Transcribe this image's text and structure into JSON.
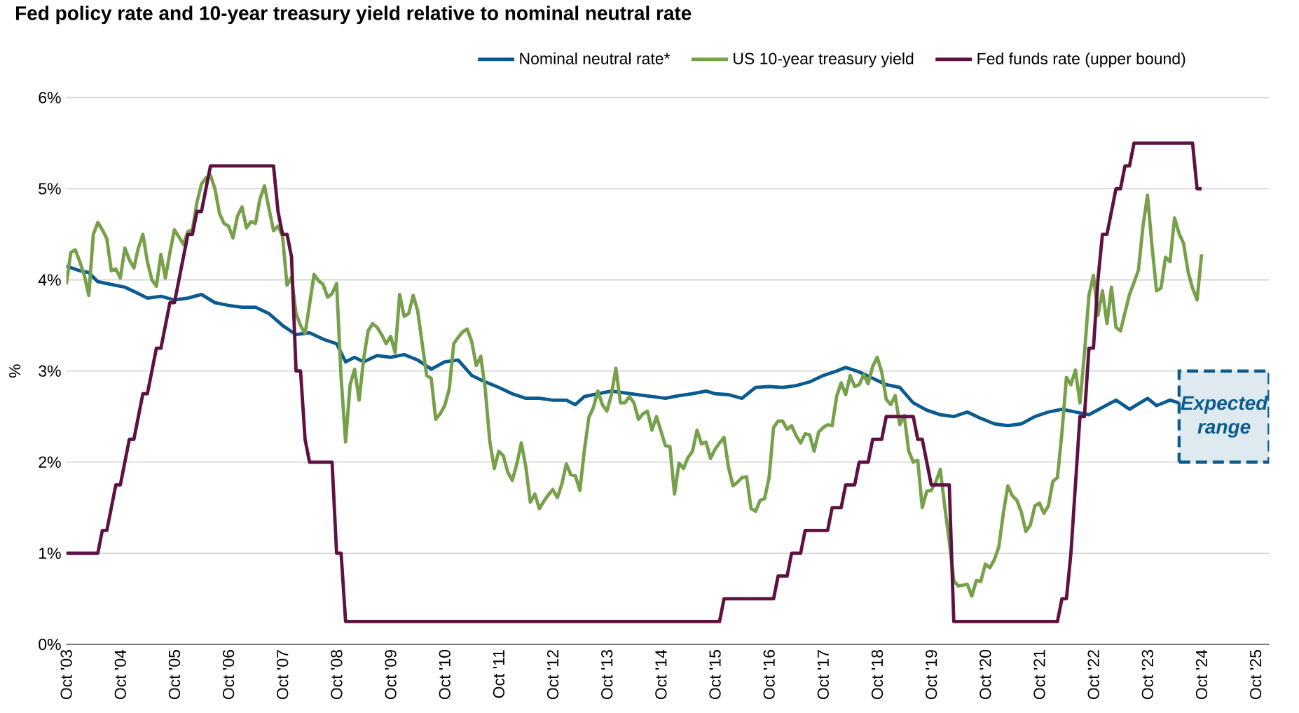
{
  "chart_data": {
    "type": "line",
    "title": "Fed policy rate and 10-year treasury yield relative to nominal neutral rate",
    "ylabel": "%",
    "x": [
      "2003-10",
      "2003-11",
      "2003-12",
      "2004-01",
      "2004-02",
      "2004-03",
      "2004-04",
      "2004-05",
      "2004-06",
      "2004-07",
      "2004-08",
      "2004-09",
      "2004-10",
      "2004-11",
      "2004-12",
      "2005-01",
      "2005-02",
      "2005-03",
      "2005-04",
      "2005-05",
      "2005-06",
      "2005-07",
      "2005-08",
      "2005-09",
      "2005-10",
      "2005-11",
      "2005-12",
      "2006-01",
      "2006-02",
      "2006-03",
      "2006-04",
      "2006-05",
      "2006-06",
      "2006-07",
      "2006-08",
      "2006-09",
      "2006-10",
      "2006-11",
      "2006-12",
      "2007-01",
      "2007-02",
      "2007-03",
      "2007-04",
      "2007-05",
      "2007-06",
      "2007-07",
      "2007-08",
      "2007-09",
      "2007-10",
      "2007-11",
      "2007-12",
      "2008-01",
      "2008-02",
      "2008-03",
      "2008-04",
      "2008-05",
      "2008-06",
      "2008-07",
      "2008-08",
      "2008-09",
      "2008-10",
      "2008-11",
      "2008-12",
      "2009-01",
      "2009-02",
      "2009-03",
      "2009-04",
      "2009-05",
      "2009-06",
      "2009-07",
      "2009-08",
      "2009-09",
      "2009-10",
      "2009-11",
      "2009-12",
      "2010-01",
      "2010-02",
      "2010-03",
      "2010-04",
      "2010-05",
      "2010-06",
      "2010-07",
      "2010-08",
      "2010-09",
      "2010-10",
      "2010-11",
      "2010-12",
      "2011-01",
      "2011-02",
      "2011-03",
      "2011-04",
      "2011-05",
      "2011-06",
      "2011-07",
      "2011-08",
      "2011-09",
      "2011-10",
      "2011-11",
      "2011-12",
      "2012-01",
      "2012-02",
      "2012-03",
      "2012-04",
      "2012-05",
      "2012-06",
      "2012-07",
      "2012-08",
      "2012-09",
      "2012-10",
      "2012-11",
      "2012-12",
      "2013-01",
      "2013-02",
      "2013-03",
      "2013-04",
      "2013-05",
      "2013-06",
      "2013-07",
      "2013-08",
      "2013-09",
      "2013-10",
      "2013-11",
      "2013-12",
      "2014-01",
      "2014-02",
      "2014-03",
      "2014-04",
      "2014-05",
      "2014-06",
      "2014-07",
      "2014-08",
      "2014-09",
      "2014-10",
      "2014-11",
      "2014-12",
      "2015-01",
      "2015-02",
      "2015-03",
      "2015-04",
      "2015-05",
      "2015-06",
      "2015-07",
      "2015-08",
      "2015-09",
      "2015-10",
      "2015-11",
      "2015-12",
      "2016-01",
      "2016-02",
      "2016-03",
      "2016-04",
      "2016-05",
      "2016-06",
      "2016-07",
      "2016-08",
      "2016-09",
      "2016-10",
      "2016-11",
      "2016-12",
      "2017-01",
      "2017-02",
      "2017-03",
      "2017-04",
      "2017-05",
      "2017-06",
      "2017-07",
      "2017-08",
      "2017-09",
      "2017-10",
      "2017-11",
      "2017-12",
      "2018-01",
      "2018-02",
      "2018-03",
      "2018-04",
      "2018-05",
      "2018-06",
      "2018-07",
      "2018-08",
      "2018-09",
      "2018-10",
      "2018-11",
      "2018-12",
      "2019-01",
      "2019-02",
      "2019-03",
      "2019-04",
      "2019-05",
      "2019-06",
      "2019-07",
      "2019-08",
      "2019-09",
      "2019-10",
      "2019-11",
      "2019-12",
      "2020-01",
      "2020-02",
      "2020-03",
      "2020-04",
      "2020-05",
      "2020-06",
      "2020-07",
      "2020-08",
      "2020-09",
      "2020-10",
      "2020-11",
      "2020-12",
      "2021-01",
      "2021-02",
      "2021-03",
      "2021-04",
      "2021-05",
      "2021-06",
      "2021-07",
      "2021-08",
      "2021-09",
      "2021-10",
      "2021-11",
      "2021-12",
      "2022-01",
      "2022-02",
      "2022-03",
      "2022-04",
      "2022-05",
      "2022-06",
      "2022-07",
      "2022-08",
      "2022-09",
      "2022-10",
      "2022-11",
      "2022-12",
      "2023-01",
      "2023-02",
      "2023-03",
      "2023-04",
      "2023-05",
      "2023-06",
      "2023-07",
      "2023-08",
      "2023-09",
      "2023-10",
      "2023-11",
      "2023-12",
      "2024-01",
      "2024-02",
      "2024-03",
      "2024-04",
      "2024-05",
      "2024-06",
      "2024-07",
      "2024-08",
      "2024-09",
      "2024-10"
    ],
    "series": [
      {
        "name": "Nominal neutral rate*",
        "color": "#0b5b8f",
        "x": [
          "2003-10",
          "2004-01",
          "2004-03",
          "2004-05",
          "2004-08",
          "2004-11",
          "2005-02",
          "2005-04",
          "2005-07",
          "2005-10",
          "2006-01",
          "2006-04",
          "2006-07",
          "2006-10",
          "2007-01",
          "2007-04",
          "2007-07",
          "2007-10",
          "2008-01",
          "2008-04",
          "2008-07",
          "2008-10",
          "2008-12",
          "2009-02",
          "2009-04",
          "2009-07",
          "2009-10",
          "2010-01",
          "2010-04",
          "2010-07",
          "2010-10",
          "2011-01",
          "2011-04",
          "2011-07",
          "2011-10",
          "2012-01",
          "2012-04",
          "2012-07",
          "2012-10",
          "2013-01",
          "2013-03",
          "2013-05",
          "2013-08",
          "2013-11",
          "2014-02",
          "2014-05",
          "2014-08",
          "2014-11",
          "2015-02",
          "2015-05",
          "2015-08",
          "2015-10",
          "2016-01",
          "2016-04",
          "2016-07",
          "2016-10",
          "2017-01",
          "2017-04",
          "2017-07",
          "2017-10",
          "2018-01",
          "2018-03",
          "2018-06",
          "2018-09",
          "2018-12",
          "2019-03",
          "2019-06",
          "2019-09",
          "2019-12",
          "2020-03",
          "2020-06",
          "2020-09",
          "2020-12",
          "2021-03",
          "2021-06",
          "2021-09",
          "2021-12",
          "2022-03",
          "2022-06",
          "2022-09",
          "2022-12",
          "2023-03",
          "2023-06",
          "2023-10",
          "2023-12",
          "2024-03",
          "2024-05"
        ],
        "values": [
          4.15,
          4.1,
          4.08,
          3.98,
          3.95,
          3.92,
          3.85,
          3.8,
          3.82,
          3.78,
          3.8,
          3.84,
          3.75,
          3.72,
          3.7,
          3.7,
          3.63,
          3.5,
          3.4,
          3.42,
          3.35,
          3.3,
          3.1,
          3.15,
          3.1,
          3.17,
          3.15,
          3.18,
          3.12,
          3.02,
          3.1,
          3.12,
          2.95,
          2.88,
          2.82,
          2.75,
          2.7,
          2.7,
          2.68,
          2.68,
          2.63,
          2.72,
          2.75,
          2.78,
          2.76,
          2.74,
          2.72,
          2.7,
          2.73,
          2.75,
          2.78,
          2.75,
          2.74,
          2.7,
          2.82,
          2.83,
          2.82,
          2.84,
          2.88,
          2.95,
          3.0,
          3.04,
          2.99,
          2.92,
          2.85,
          2.82,
          2.65,
          2.57,
          2.52,
          2.5,
          2.55,
          2.48,
          2.42,
          2.4,
          2.42,
          2.5,
          2.55,
          2.58,
          2.55,
          2.52,
          2.6,
          2.68,
          2.58,
          2.7,
          2.62,
          2.68,
          2.65
        ]
      },
      {
        "name": "US 10-year treasury yield",
        "color": "#77a04a",
        "values": [
          3.95,
          4.3,
          4.33,
          4.2,
          4.05,
          3.83,
          4.5,
          4.63,
          4.55,
          4.45,
          4.1,
          4.12,
          4.02,
          4.35,
          4.22,
          4.13,
          4.35,
          4.5,
          4.2,
          4.0,
          3.93,
          4.28,
          4.02,
          4.3,
          4.55,
          4.47,
          4.39,
          4.53,
          4.55,
          4.85,
          5.05,
          5.12,
          5.15,
          5.0,
          4.73,
          4.62,
          4.59,
          4.46,
          4.7,
          4.8,
          4.57,
          4.64,
          4.62,
          4.89,
          5.03,
          4.78,
          4.54,
          4.59,
          4.48,
          3.94,
          4.03,
          3.63,
          3.5,
          3.41,
          3.73,
          4.06,
          3.99,
          3.95,
          3.81,
          3.85,
          3.96,
          2.93,
          2.22,
          2.85,
          3.02,
          2.68,
          3.13,
          3.44,
          3.52,
          3.48,
          3.4,
          3.3,
          3.38,
          3.2,
          3.84,
          3.6,
          3.63,
          3.83,
          3.66,
          3.3,
          2.95,
          2.92,
          2.47,
          2.53,
          2.62,
          2.8,
          3.3,
          3.37,
          3.43,
          3.46,
          3.32,
          3.06,
          3.16,
          2.8,
          2.23,
          1.93,
          2.12,
          2.07,
          1.89,
          1.8,
          1.98,
          2.21,
          1.95,
          1.56,
          1.65,
          1.49,
          1.57,
          1.64,
          1.7,
          1.61,
          1.76,
          1.98,
          1.86,
          1.85,
          1.69,
          2.13,
          2.49,
          2.6,
          2.78,
          2.63,
          2.56,
          2.74,
          3.03,
          2.65,
          2.65,
          2.72,
          2.65,
          2.47,
          2.53,
          2.56,
          2.35,
          2.5,
          2.34,
          2.18,
          2.17,
          1.65,
          1.99,
          1.93,
          2.05,
          2.12,
          2.35,
          2.2,
          2.22,
          2.04,
          2.14,
          2.21,
          2.27,
          1.94,
          1.74,
          1.78,
          1.83,
          1.84,
          1.49,
          1.46,
          1.58,
          1.6,
          1.83,
          2.38,
          2.45,
          2.45,
          2.36,
          2.4,
          2.29,
          2.21,
          2.31,
          2.3,
          2.12,
          2.33,
          2.38,
          2.41,
          2.4,
          2.72,
          2.87,
          2.74,
          2.95,
          2.83,
          2.85,
          2.96,
          2.86,
          3.05,
          3.15,
          2.99,
          2.69,
          2.63,
          2.73,
          2.41,
          2.51,
          2.12,
          2.0,
          2.02,
          1.5,
          1.68,
          1.69,
          1.78,
          1.92,
          1.51,
          1.13,
          0.7,
          0.64,
          0.65,
          0.66,
          0.53,
          0.7,
          0.69,
          0.88,
          0.84,
          0.93,
          1.07,
          1.44,
          1.74,
          1.63,
          1.58,
          1.45,
          1.24,
          1.31,
          1.52,
          1.55,
          1.44,
          1.52,
          1.79,
          1.83,
          2.32,
          2.93,
          2.85,
          3.01,
          2.65,
          3.19,
          3.83,
          4.05,
          3.61,
          3.88,
          3.52,
          3.92,
          3.48,
          3.44,
          3.64,
          3.84,
          3.97,
          4.11,
          4.59,
          4.93,
          4.37,
          3.88,
          3.91,
          4.25,
          4.2,
          4.68,
          4.51,
          4.4,
          4.09,
          3.91,
          3.78,
          4.28
        ]
      },
      {
        "name": "Fed funds rate (upper bound)",
        "color": "#5e1242",
        "x": [
          "2003-10",
          "2004-05",
          "2004-06",
          "2004-07",
          "2004-08",
          "2004-09",
          "2004-10",
          "2004-11",
          "2004-12",
          "2005-01",
          "2005-02",
          "2005-03",
          "2005-04",
          "2005-05",
          "2005-06",
          "2005-07",
          "2005-08",
          "2005-09",
          "2005-10",
          "2005-11",
          "2005-12",
          "2006-01",
          "2006-02",
          "2006-03",
          "2006-04",
          "2006-05",
          "2006-06",
          "2007-08",
          "2007-09",
          "2007-10",
          "2007-11",
          "2007-12",
          "2008-01",
          "2008-02",
          "2008-03",
          "2008-04",
          "2008-09",
          "2008-10",
          "2008-11",
          "2008-12",
          "2015-11",
          "2015-12",
          "2016-11",
          "2016-12",
          "2017-02",
          "2017-03",
          "2017-05",
          "2017-06",
          "2017-11",
          "2017-12",
          "2018-02",
          "2018-03",
          "2018-05",
          "2018-06",
          "2018-08",
          "2018-09",
          "2018-11",
          "2018-12",
          "2019-06",
          "2019-07",
          "2019-08",
          "2019-09",
          "2019-10",
          "2020-02",
          "2020-03",
          "2022-02",
          "2022-03",
          "2022-04",
          "2022-05",
          "2022-06",
          "2022-07",
          "2022-08",
          "2022-09",
          "2022-10",
          "2022-11",
          "2022-12",
          "2023-01",
          "2023-02",
          "2023-03",
          "2023-04",
          "2023-05",
          "2023-06",
          "2023-07",
          "2024-08",
          "2024-09",
          "2024-10"
        ],
        "values": [
          1.0,
          1.0,
          1.25,
          1.25,
          1.5,
          1.75,
          1.75,
          2.0,
          2.25,
          2.25,
          2.5,
          2.75,
          2.75,
          3.0,
          3.25,
          3.25,
          3.5,
          3.75,
          3.75,
          4.0,
          4.25,
          4.5,
          4.5,
          4.75,
          4.75,
          5.0,
          5.25,
          5.25,
          4.75,
          4.5,
          4.5,
          4.25,
          3.0,
          3.0,
          2.25,
          2.0,
          2.0,
          1.0,
          1.0,
          0.25,
          0.25,
          0.5,
          0.5,
          0.75,
          0.75,
          1.0,
          1.0,
          1.25,
          1.25,
          1.5,
          1.5,
          1.75,
          1.75,
          2.0,
          2.0,
          2.25,
          2.25,
          2.5,
          2.5,
          2.25,
          2.25,
          2.0,
          1.75,
          1.75,
          0.25,
          0.25,
          0.5,
          0.5,
          1.0,
          1.75,
          2.5,
          2.5,
          3.25,
          3.25,
          4.0,
          4.5,
          4.5,
          4.75,
          5.0,
          5.0,
          5.25,
          5.25,
          5.5,
          5.5,
          5.0,
          5.0
        ]
      }
    ],
    "xlim": [
      "2003-10",
      "2026-01"
    ],
    "xticks": [
      {
        "value": "2003-10",
        "label": "Oct '03"
      },
      {
        "value": "2004-10",
        "label": "Oct '04"
      },
      {
        "value": "2005-10",
        "label": "Oct '05"
      },
      {
        "value": "2006-10",
        "label": "Oct '06"
      },
      {
        "value": "2007-10",
        "label": "Oct '07"
      },
      {
        "value": "2008-10",
        "label": "Oct '08"
      },
      {
        "value": "2009-10",
        "label": "Oct '09"
      },
      {
        "value": "2010-10",
        "label": "Oct '10"
      },
      {
        "value": "2011-10",
        "label": "Oct '11"
      },
      {
        "value": "2012-10",
        "label": "Oct '12"
      },
      {
        "value": "2013-10",
        "label": "Oct '13"
      },
      {
        "value": "2014-10",
        "label": "Oct '14"
      },
      {
        "value": "2015-10",
        "label": "Oct '15"
      },
      {
        "value": "2016-10",
        "label": "Oct '16"
      },
      {
        "value": "2017-10",
        "label": "Oct '17"
      },
      {
        "value": "2018-10",
        "label": "Oct '18"
      },
      {
        "value": "2019-10",
        "label": "Oct '19"
      },
      {
        "value": "2020-10",
        "label": "Oct '20"
      },
      {
        "value": "2021-10",
        "label": "Oct '21"
      },
      {
        "value": "2022-10",
        "label": "Oct '22"
      },
      {
        "value": "2023-10",
        "label": "Oct '23"
      },
      {
        "value": "2024-10",
        "label": "Oct '24"
      },
      {
        "value": "2025-10",
        "label": "Oct '25"
      }
    ],
    "ylim": [
      0,
      6
    ],
    "yticks": [
      {
        "value": 0,
        "label": "0%"
      },
      {
        "value": 1,
        "label": "1%"
      },
      {
        "value": 2,
        "label": "2%"
      },
      {
        "value": 3,
        "label": "3%"
      },
      {
        "value": 4,
        "label": "4%"
      },
      {
        "value": 5,
        "label": "5%"
      },
      {
        "value": 6,
        "label": "6%"
      }
    ],
    "bands": [
      {
        "axis": "y",
        "from": 2,
        "to": 3,
        "label": "Expected range",
        "color": "#dfeaf0"
      }
    ],
    "grid": "y",
    "legend": "top right"
  }
}
